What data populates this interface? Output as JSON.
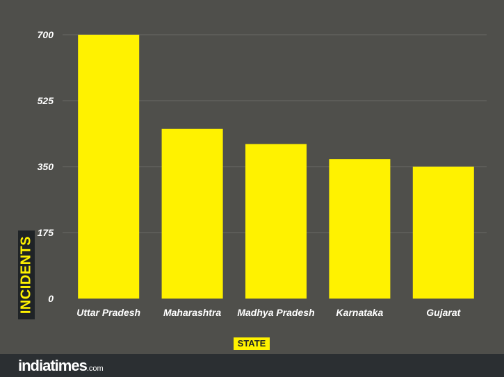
{
  "chart_data": {
    "type": "bar",
    "categories": [
      "Uttar Pradesh",
      "Maharashtra",
      "Madhya Pradesh",
      "Karnataka",
      "Gujarat"
    ],
    "values": [
      700,
      450,
      410,
      370,
      350
    ],
    "xlabel": "STATE",
    "ylabel": "INCIDENTS",
    "ylim": [
      0,
      700
    ],
    "yticks": [
      0,
      175,
      350,
      525,
      700
    ],
    "grid": true,
    "bar_color": "#fff200",
    "grid_color": "#6a6a66"
  },
  "footer": {
    "logo_main": "indiatimes",
    "logo_suffix": ".com"
  }
}
